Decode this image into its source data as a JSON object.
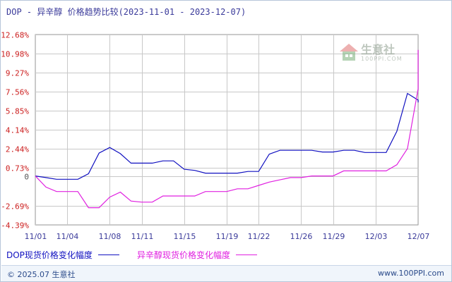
{
  "header": {
    "title": "DOP - 异辛醇 价格趋势比较(2023-11-01 - 2023-12-07)"
  },
  "watermark": {
    "text": "生意社",
    "sub": "100PPI.COM",
    "icon": "house-logo-icon"
  },
  "footer": {
    "copyright": "© 2025.07 生意社",
    "site": "www.100PPI.com"
  },
  "colors": {
    "dop": "#1010c0",
    "octanol": "#e020e0",
    "tick": "#cc2020",
    "grid": "#c8c8c8",
    "text": "#3a3a9a"
  },
  "chart_data": {
    "type": "line",
    "title": "DOP - 异辛醇 价格趋势比较(2023-11-01 - 2023-12-07)",
    "xlabel": "",
    "ylabel": "",
    "x_start": "11/01",
    "x_end": "12/07",
    "x_ticks": [
      "11/01",
      "11/04",
      "11/08",
      "11/11",
      "11/15",
      "11/19",
      "11/22",
      "11/26",
      "11/29",
      "12/03",
      "12/07"
    ],
    "y_ticks": [
      "12.68%",
      "10.98%",
      "9.27%",
      "7.56%",
      "5.85%",
      "4.14%",
      "2.44%",
      "0.73%",
      "0",
      "-2.69%",
      "-4.39%"
    ],
    "ylim": [
      -4.39,
      12.68
    ],
    "grid": true,
    "legend_position": "bottom-left",
    "series": [
      {
        "name": "DOP现货价格变化幅度",
        "points": [
          [
            "11/01",
            0.0
          ],
          [
            "11/02",
            -0.15
          ],
          [
            "11/03",
            -0.3
          ],
          [
            "11/04",
            -0.3
          ],
          [
            "11/05",
            -0.3
          ],
          [
            "11/06",
            0.2
          ],
          [
            "11/07",
            2.05
          ],
          [
            "11/08",
            2.55
          ],
          [
            "11/09",
            2.0
          ],
          [
            "11/10",
            1.15
          ],
          [
            "11/11",
            1.15
          ],
          [
            "11/12",
            1.15
          ],
          [
            "11/13",
            1.35
          ],
          [
            "11/14",
            1.35
          ],
          [
            "11/15",
            0.6
          ],
          [
            "11/16",
            0.5
          ],
          [
            "11/17",
            0.25
          ],
          [
            "11/18",
            0.25
          ],
          [
            "11/19",
            0.25
          ],
          [
            "11/20",
            0.25
          ],
          [
            "11/21",
            0.4
          ],
          [
            "11/22",
            0.4
          ],
          [
            "11/23",
            1.95
          ],
          [
            "11/24",
            2.3
          ],
          [
            "11/25",
            2.3
          ],
          [
            "11/26",
            2.3
          ],
          [
            "11/27",
            2.3
          ],
          [
            "11/28",
            2.15
          ],
          [
            "11/29",
            2.15
          ],
          [
            "11/30",
            2.3
          ],
          [
            "12/01",
            2.3
          ],
          [
            "12/02",
            2.1
          ],
          [
            "12/03",
            2.1
          ],
          [
            "12/04",
            2.1
          ],
          [
            "12/05",
            4.0
          ],
          [
            "12/06",
            7.4
          ],
          [
            "12/07",
            6.8
          ],
          [
            "12/08",
            6.6
          ]
        ]
      },
      {
        "name": "异辛醇现货价格变化幅度",
        "points": [
          [
            "11/01",
            0.0
          ],
          [
            "11/02",
            -1.0
          ],
          [
            "11/03",
            -1.4
          ],
          [
            "11/04",
            -1.4
          ],
          [
            "11/05",
            -1.4
          ],
          [
            "11/06",
            -2.85
          ],
          [
            "11/07",
            -2.85
          ],
          [
            "11/08",
            -1.9
          ],
          [
            "11/09",
            -1.45
          ],
          [
            "11/10",
            -2.25
          ],
          [
            "11/11",
            -2.35
          ],
          [
            "11/12",
            -2.35
          ],
          [
            "11/13",
            -1.8
          ],
          [
            "11/14",
            -1.8
          ],
          [
            "11/15",
            -1.8
          ],
          [
            "11/16",
            -1.8
          ],
          [
            "11/17",
            -1.4
          ],
          [
            "11/18",
            -1.4
          ],
          [
            "11/19",
            -1.4
          ],
          [
            "11/20",
            -1.15
          ],
          [
            "11/21",
            -1.15
          ],
          [
            "11/22",
            -0.85
          ],
          [
            "11/23",
            -0.55
          ],
          [
            "11/24",
            -0.35
          ],
          [
            "11/25",
            -0.15
          ],
          [
            "11/26",
            -0.15
          ],
          [
            "11/27",
            0.0
          ],
          [
            "11/28",
            0.0
          ],
          [
            "11/29",
            0.0
          ],
          [
            "11/30",
            0.45
          ],
          [
            "12/01",
            0.45
          ],
          [
            "12/02",
            0.45
          ],
          [
            "12/03",
            0.45
          ],
          [
            "12/04",
            0.45
          ],
          [
            "12/05",
            1.0
          ],
          [
            "12/06",
            2.45
          ],
          [
            "12/07",
            7.8
          ],
          [
            "12/08",
            11.3
          ]
        ]
      }
    ]
  }
}
